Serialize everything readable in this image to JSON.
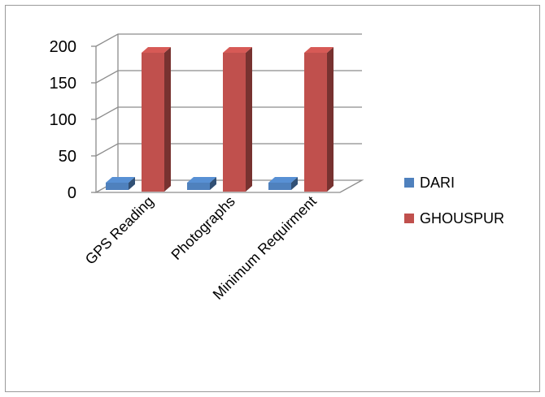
{
  "chart_data": {
    "type": "bar",
    "style": "3d-clustered-column",
    "categories": [
      "GPS Reading",
      "Photographs",
      "Minimum Requirment"
    ],
    "series": [
      {
        "name": "DARI",
        "values": [
          10,
          10,
          10
        ],
        "color": "#4F81BD"
      },
      {
        "name": "GHOUSPUR",
        "values": [
          190,
          190,
          190
        ],
        "color": "#C0504D"
      }
    ],
    "ylim": [
      0,
      200
    ],
    "yticks": [
      0,
      50,
      100,
      150,
      200
    ],
    "grid": true,
    "legend": "right"
  }
}
